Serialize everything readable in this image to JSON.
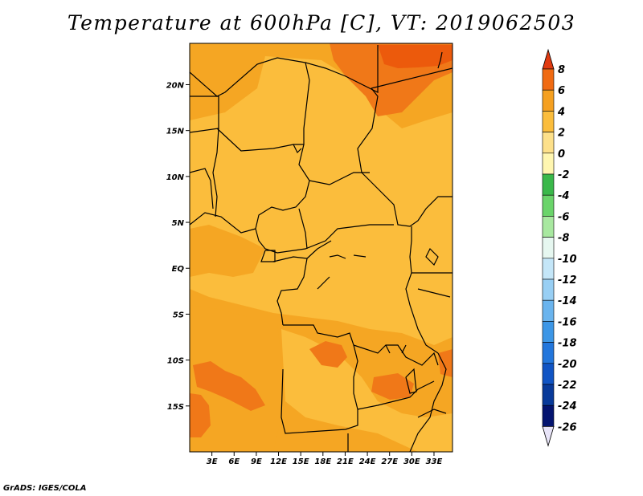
{
  "title": "Temperature at 600hPa [C], VT: 2019062503",
  "credit": "GrADS: IGES/COLA",
  "map": {
    "lon_range": [
      0,
      35.5
    ],
    "lat_range": [
      -20,
      24.5
    ],
    "x_ticks": [
      "3E",
      "6E",
      "9E",
      "12E",
      "15E",
      "18E",
      "21E",
      "24E",
      "27E",
      "30E",
      "33E"
    ],
    "x_tick_values": [
      3,
      6,
      9,
      12,
      15,
      18,
      21,
      24,
      27,
      30,
      33
    ],
    "y_ticks": [
      "20N",
      "15N",
      "10N",
      "5N",
      "EQ",
      "5S",
      "10S",
      "15S"
    ],
    "y_tick_values": [
      20,
      15,
      10,
      5,
      0,
      -5,
      -10,
      -15
    ],
    "colors": {
      "base": "#f5a623",
      "warm_0_2": "#fbbd3c",
      "warm_4_6": "#f07818",
      "warm_6_8": "#ec5a0c",
      "border": "#000000"
    }
  },
  "colorbar": {
    "labels": [
      "8",
      "6",
      "4",
      "2",
      "0",
      "-2",
      "-4",
      "-6",
      "-8",
      "-10",
      "-12",
      "-14",
      "-16",
      "-18",
      "-20",
      "-22",
      "-24",
      "-26"
    ],
    "colors": [
      "#e03a10",
      "#f06a12",
      "#f5a020",
      "#fbbd3c",
      "#fde08a",
      "#fff6b0",
      "#3ab84a",
      "#6ad46a",
      "#a8e8a0",
      "#e6f7f0",
      "#c4e6f8",
      "#98cff4",
      "#6ab4ee",
      "#3c96e6",
      "#2276dc",
      "#1054c4",
      "#083a9a",
      "#041470",
      "#e8e4f8"
    ]
  }
}
